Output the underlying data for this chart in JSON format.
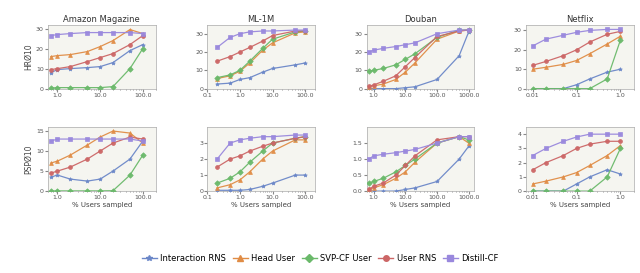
{
  "datasets": {
    "Amazon Magazine": {
      "xrange": [
        0.6,
        200
      ],
      "xticks": [
        1.0,
        10.0,
        100.0
      ],
      "xticklabels": [
        "1.0",
        "10.0",
        "100.0"
      ],
      "HR010": {
        "Interaction RNS": {
          "x": [
            0.7,
            1.0,
            2.0,
            5.0,
            10.0,
            20.0,
            50.0,
            100.0
          ],
          "y": [
            8.0,
            9.5,
            10.0,
            10.5,
            11.0,
            13.0,
            19.0,
            22.0
          ]
        },
        "Head User": {
          "x": [
            0.7,
            1.0,
            2.0,
            5.0,
            10.0,
            20.0,
            50.0,
            100.0
          ],
          "y": [
            16.0,
            16.5,
            17.0,
            18.5,
            21.0,
            24.0,
            29.5,
            27.5
          ]
        },
        "SVP-CF User": {
          "x": [
            0.7,
            1.0,
            2.0,
            5.0,
            10.0,
            20.0,
            50.0,
            100.0
          ],
          "y": [
            0.3,
            0.5,
            0.5,
            0.5,
            0.5,
            1.0,
            10.0,
            20.0
          ]
        },
        "User RNS": {
          "x": [
            0.7,
            1.0,
            2.0,
            5.0,
            10.0,
            20.0,
            50.0,
            100.0
          ],
          "y": [
            9.5,
            10.0,
            11.0,
            13.5,
            15.5,
            17.5,
            22.0,
            26.5
          ]
        },
        "DISTILL-CF": {
          "x": [
            0.7,
            1.0,
            2.0,
            5.0,
            10.0,
            20.0,
            50.0,
            100.0
          ],
          "y": [
            26.5,
            27.0,
            27.5,
            28.0,
            28.0,
            28.0,
            28.0,
            27.5
          ]
        },
        "ylim": [
          0,
          32
        ],
        "yticks": [
          0,
          10,
          20,
          30
        ]
      },
      "PSP010": {
        "Interaction RNS": {
          "x": [
            0.7,
            1.0,
            2.0,
            5.0,
            10.0,
            20.0,
            50.0,
            100.0
          ],
          "y": [
            3.5,
            4.0,
            3.0,
            2.5,
            3.0,
            5.0,
            8.0,
            12.5
          ]
        },
        "Head User": {
          "x": [
            0.7,
            1.0,
            2.0,
            5.0,
            10.0,
            20.0,
            50.0,
            100.0
          ],
          "y": [
            7.0,
            7.5,
            9.0,
            11.5,
            13.5,
            15.0,
            14.5,
            12.0
          ]
        },
        "SVP-CF User": {
          "x": [
            0.7,
            1.0,
            2.0,
            5.0,
            10.0,
            20.0,
            50.0,
            100.0
          ],
          "y": [
            0.05,
            0.05,
            0.05,
            0.05,
            0.05,
            0.1,
            4.0,
            9.0
          ]
        },
        "User RNS": {
          "x": [
            0.7,
            1.0,
            2.0,
            5.0,
            10.0,
            20.0,
            50.0,
            100.0
          ],
          "y": [
            4.5,
            5.0,
            6.0,
            8.0,
            10.0,
            12.0,
            13.5,
            13.0
          ]
        },
        "DISTILL-CF": {
          "x": [
            0.7,
            1.0,
            2.0,
            5.0,
            10.0,
            20.0,
            50.0,
            100.0
          ],
          "y": [
            12.5,
            13.0,
            13.0,
            13.0,
            13.0,
            13.0,
            13.0,
            12.5
          ]
        },
        "ylim": [
          0,
          16
        ],
        "yticks": [
          0,
          5,
          10,
          15
        ]
      }
    },
    "ML-1M": {
      "xrange": [
        0.15,
        200
      ],
      "xticks": [
        0.1,
        1.0,
        10.0,
        100.0
      ],
      "xticklabels": [
        "0.1",
        "1.0",
        "10.0",
        "100.0"
      ],
      "HR010": {
        "Interaction RNS": {
          "x": [
            0.2,
            0.5,
            1.0,
            2.0,
            5.0,
            10.0,
            50.0,
            100.0
          ],
          "y": [
            2.5,
            3.0,
            5.0,
            6.0,
            9.0,
            11.0,
            13.0,
            14.0
          ]
        },
        "Head User": {
          "x": [
            0.2,
            0.5,
            1.0,
            2.0,
            5.0,
            10.0,
            50.0,
            100.0
          ],
          "y": [
            5.5,
            7.0,
            9.5,
            14.0,
            21.0,
            25.0,
            30.5,
            31.0
          ]
        },
        "SVP-CF User": {
          "x": [
            0.2,
            0.5,
            1.0,
            2.0,
            5.0,
            10.0,
            50.0,
            100.0
          ],
          "y": [
            6.0,
            7.5,
            10.0,
            15.0,
            22.0,
            27.0,
            31.0,
            31.5
          ]
        },
        "User RNS": {
          "x": [
            0.2,
            0.5,
            1.0,
            2.0,
            5.0,
            10.0,
            50.0,
            100.0
          ],
          "y": [
            15.0,
            17.5,
            20.0,
            22.5,
            26.0,
            29.0,
            31.5,
            31.5
          ]
        },
        "DISTILL-CF": {
          "x": [
            0.2,
            0.5,
            1.0,
            2.0,
            5.0,
            10.0,
            50.0,
            100.0
          ],
          "y": [
            22.5,
            28.0,
            30.0,
            31.0,
            31.5,
            31.5,
            32.0,
            32.0
          ]
        },
        "ylim": [
          0,
          35
        ],
        "yticks": [
          0,
          10,
          20,
          30
        ]
      },
      "PSP010": {
        "Interaction RNS": {
          "x": [
            0.2,
            0.5,
            1.0,
            2.0,
            5.0,
            10.0,
            50.0,
            100.0
          ],
          "y": [
            0.05,
            0.05,
            0.05,
            0.1,
            0.3,
            0.5,
            1.0,
            1.0
          ]
        },
        "Head User": {
          "x": [
            0.2,
            0.5,
            1.0,
            2.0,
            5.0,
            10.0,
            50.0,
            100.0
          ],
          "y": [
            0.2,
            0.4,
            0.7,
            1.2,
            2.0,
            2.5,
            3.2,
            3.2
          ]
        },
        "SVP-CF User": {
          "x": [
            0.2,
            0.5,
            1.0,
            2.0,
            5.0,
            10.0,
            50.0,
            100.0
          ],
          "y": [
            0.5,
            0.8,
            1.2,
            1.8,
            2.5,
            3.0,
            3.3,
            3.4
          ]
        },
        "User RNS": {
          "x": [
            0.2,
            0.5,
            1.0,
            2.0,
            5.0,
            10.0,
            50.0,
            100.0
          ],
          "y": [
            1.5,
            2.0,
            2.2,
            2.5,
            2.8,
            3.0,
            3.3,
            3.4
          ]
        },
        "DISTILL-CF": {
          "x": [
            0.2,
            0.5,
            1.0,
            2.0,
            5.0,
            10.0,
            50.0,
            100.0
          ],
          "y": [
            2.0,
            3.0,
            3.2,
            3.3,
            3.4,
            3.4,
            3.5,
            3.5
          ]
        },
        "ylim": [
          0,
          4
        ],
        "yticks": [
          0,
          1,
          2,
          3
        ]
      }
    },
    "Douban": {
      "xrange": [
        0.6,
        1500
      ],
      "xticks": [
        1.0,
        10.0,
        100.0,
        1000.0
      ],
      "xticklabels": [
        "1.0",
        "10.0",
        "100.0",
        "1000.0"
      ],
      "HR010": {
        "Interaction RNS": {
          "x": [
            0.7,
            1.0,
            2.0,
            5.0,
            10.0,
            20.0,
            100.0,
            500.0,
            1000.0
          ],
          "y": [
            0.0,
            0.0,
            0.0,
            0.0,
            0.5,
            1.0,
            5.0,
            18.0,
            31.0
          ]
        },
        "Head User": {
          "x": [
            0.7,
            1.0,
            2.0,
            5.0,
            10.0,
            20.0,
            100.0,
            500.0,
            1000.0
          ],
          "y": [
            1.0,
            1.5,
            2.5,
            5.0,
            9.0,
            14.0,
            27.0,
            31.5,
            32.0
          ]
        },
        "SVP-CF User": {
          "x": [
            0.7,
            1.0,
            2.0,
            5.0,
            10.0,
            20.0,
            100.0,
            500.0,
            1000.0
          ],
          "y": [
            9.5,
            10.0,
            11.0,
            13.0,
            16.0,
            19.0,
            28.0,
            32.0,
            32.0
          ]
        },
        "User RNS": {
          "x": [
            0.7,
            1.0,
            2.0,
            5.0,
            10.0,
            20.0,
            100.0,
            500.0,
            1000.0
          ],
          "y": [
            1.2,
            2.0,
            4.0,
            7.0,
            12.0,
            17.0,
            28.5,
            31.5,
            32.0
          ]
        },
        "DISTILL-CF": {
          "x": [
            0.7,
            1.0,
            2.0,
            5.0,
            10.0,
            20.0,
            100.0,
            500.0,
            1000.0
          ],
          "y": [
            20.0,
            21.0,
            22.0,
            23.0,
            24.0,
            25.0,
            30.0,
            32.0,
            32.0
          ]
        },
        "ylim": [
          0,
          35
        ],
        "yticks": [
          0,
          10,
          20,
          30
        ]
      },
      "PSP010": {
        "Interaction RNS": {
          "x": [
            0.7,
            1.0,
            2.0,
            5.0,
            10.0,
            20.0,
            100.0,
            500.0,
            1000.0
          ],
          "y": [
            0.0,
            0.0,
            0.0,
            0.0,
            0.05,
            0.1,
            0.3,
            1.0,
            1.4
          ]
        },
        "Head User": {
          "x": [
            0.7,
            1.0,
            2.0,
            5.0,
            10.0,
            20.0,
            100.0,
            500.0,
            1000.0
          ],
          "y": [
            0.05,
            0.1,
            0.2,
            0.4,
            0.6,
            0.9,
            1.5,
            1.7,
            1.5
          ]
        },
        "SVP-CF User": {
          "x": [
            0.7,
            1.0,
            2.0,
            5.0,
            10.0,
            20.0,
            100.0,
            500.0,
            1000.0
          ],
          "y": [
            0.25,
            0.3,
            0.4,
            0.6,
            0.8,
            1.0,
            1.5,
            1.7,
            1.6
          ]
        },
        "User RNS": {
          "x": [
            0.7,
            1.0,
            2.0,
            5.0,
            10.0,
            20.0,
            100.0,
            500.0,
            1000.0
          ],
          "y": [
            0.05,
            0.15,
            0.25,
            0.5,
            0.8,
            1.1,
            1.6,
            1.7,
            1.7
          ]
        },
        "DISTILL-CF": {
          "x": [
            0.7,
            1.0,
            2.0,
            5.0,
            10.0,
            20.0,
            100.0,
            500.0,
            1000.0
          ],
          "y": [
            1.0,
            1.1,
            1.15,
            1.2,
            1.25,
            1.3,
            1.5,
            1.7,
            1.7
          ]
        },
        "ylim": [
          0,
          2.0
        ],
        "yticks": [
          0.0,
          0.5,
          1.0,
          1.5
        ]
      }
    },
    "Netflix": {
      "xrange": [
        0.007,
        2.0
      ],
      "xticks": [
        0.01,
        0.1,
        1.0
      ],
      "xticklabels": [
        "0.01",
        "0.1",
        "1.0"
      ],
      "HR010": {
        "Interaction RNS": {
          "x": [
            0.01,
            0.02,
            0.05,
            0.1,
            0.2,
            0.5,
            1.0
          ],
          "y": [
            0.0,
            0.0,
            0.0,
            2.0,
            5.0,
            8.5,
            10.0
          ]
        },
        "Head User": {
          "x": [
            0.01,
            0.02,
            0.05,
            0.1,
            0.2,
            0.5,
            1.0
          ],
          "y": [
            10.0,
            11.0,
            12.5,
            14.5,
            18.0,
            23.0,
            27.0
          ]
        },
        "SVP-CF User": {
          "x": [
            0.01,
            0.02,
            0.05,
            0.1,
            0.2,
            0.5,
            1.0
          ],
          "y": [
            0.0,
            0.0,
            0.0,
            0.0,
            0.0,
            5.0,
            25.0
          ]
        },
        "User RNS": {
          "x": [
            0.01,
            0.02,
            0.05,
            0.1,
            0.2,
            0.5,
            1.0
          ],
          "y": [
            12.0,
            14.0,
            17.0,
            20.0,
            24.0,
            28.0,
            29.5
          ]
        },
        "DISTILL-CF": {
          "x": [
            0.01,
            0.02,
            0.05,
            0.1,
            0.2,
            0.5,
            1.0
          ],
          "y": [
            22.0,
            25.5,
            27.5,
            29.0,
            30.0,
            30.5,
            30.5
          ]
        },
        "ylim": [
          0,
          33
        ],
        "yticks": [
          0,
          10,
          20,
          30
        ]
      },
      "PSP010": {
        "Interaction RNS": {
          "x": [
            0.01,
            0.02,
            0.05,
            0.1,
            0.2,
            0.5,
            1.0
          ],
          "y": [
            0.0,
            0.0,
            0.0,
            0.5,
            1.0,
            1.5,
            1.2
          ]
        },
        "Head User": {
          "x": [
            0.01,
            0.02,
            0.05,
            0.1,
            0.2,
            0.5,
            1.0
          ],
          "y": [
            0.5,
            0.7,
            1.0,
            1.3,
            1.8,
            2.5,
            3.2
          ]
        },
        "SVP-CF User": {
          "x": [
            0.01,
            0.02,
            0.05,
            0.1,
            0.2,
            0.5,
            1.0
          ],
          "y": [
            0.0,
            0.0,
            0.0,
            0.0,
            0.0,
            1.0,
            3.0
          ]
        },
        "User RNS": {
          "x": [
            0.01,
            0.02,
            0.05,
            0.1,
            0.2,
            0.5,
            1.0
          ],
          "y": [
            1.5,
            2.0,
            2.5,
            3.0,
            3.3,
            3.5,
            3.5
          ]
        },
        "DISTILL-CF": {
          "x": [
            0.01,
            0.02,
            0.05,
            0.1,
            0.2,
            0.5,
            1.0
          ],
          "y": [
            2.5,
            3.0,
            3.5,
            3.8,
            4.0,
            4.0,
            4.0
          ]
        },
        "ylim": [
          0,
          4.5
        ],
        "yticks": [
          0,
          1,
          2,
          3,
          4
        ]
      }
    }
  },
  "methods": [
    "Interaction RNS",
    "Head User",
    "SVP-CF User",
    "User RNS",
    "DISTILL-CF"
  ],
  "colors": {
    "Interaction RNS": "#6b87c8",
    "Head User": "#e08c45",
    "SVP-CF User": "#6ab96a",
    "User RNS": "#cc6666",
    "DISTILL-CF": "#9988dd"
  },
  "markers": {
    "Interaction RNS": "*",
    "Head User": "^",
    "SVP-CF User": "D",
    "User RNS": "o",
    "DISTILL-CF": "s"
  },
  "xlabel": "% Users sampled",
  "ylabel_top": "HRØ10",
  "ylabel_bot": "PSPØ10",
  "dataset_order": [
    "Amazon Magazine",
    "ML-1M",
    "Douban",
    "Netflix"
  ],
  "bg_color": "#f5f5f0"
}
